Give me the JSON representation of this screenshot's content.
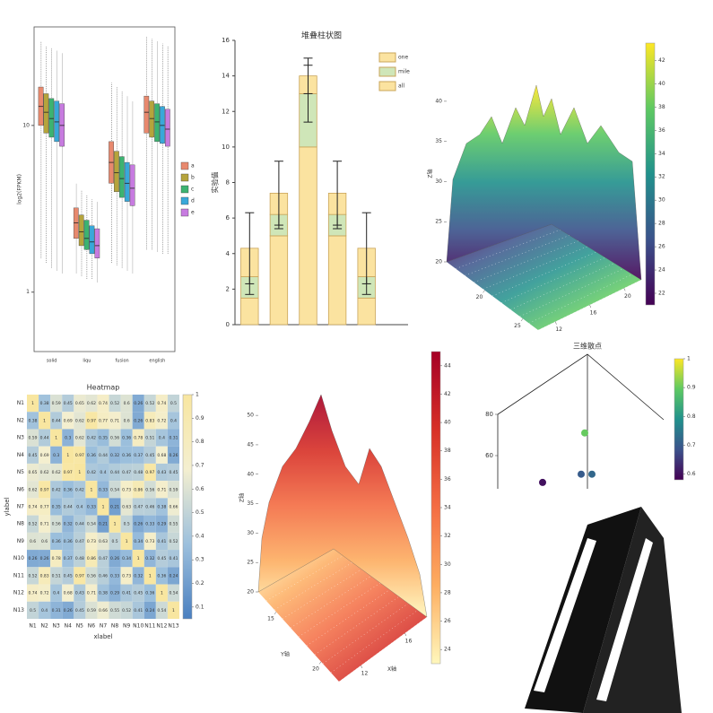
{
  "chart_data": [
    {
      "type": "box",
      "y_label": "log2(FPKM)",
      "categories": [
        "solid",
        "liqu",
        "fusion",
        "english"
      ],
      "log_y": true,
      "ylim": [
        0.44,
        39
      ],
      "yticks": [
        1,
        10
      ],
      "series": [
        {
          "name": "a",
          "color": "#e8896e",
          "values": [
            [
              1.6,
              10,
              13,
              17,
              32
            ],
            [
              1.3,
              2.1,
              2.6,
              3.2,
              4.5
            ],
            [
              1.5,
              4.5,
              6,
              8,
              18
            ],
            [
              1.8,
              9,
              12,
              15,
              34
            ]
          ]
        },
        {
          "name": "b",
          "color": "#b5a43c",
          "values": [
            [
              1.5,
              9,
              12,
              15.5,
              30
            ],
            [
              1.25,
              1.9,
              2.3,
              2.9,
              4.1
            ],
            [
              1.45,
              4,
              5.2,
              7,
              17
            ],
            [
              1.8,
              8.5,
              11,
              14,
              33
            ]
          ]
        },
        {
          "name": "c",
          "color": "#3cb371",
          "values": [
            [
              1.4,
              8.5,
              11,
              14.5,
              29
            ],
            [
              1.2,
              1.8,
              2.1,
              2.7,
              3.8
            ],
            [
              1.4,
              3.7,
              4.8,
              6.5,
              16
            ],
            [
              1.75,
              8,
              10.5,
              13.5,
              32
            ]
          ]
        },
        {
          "name": "d",
          "color": "#39a8d9",
          "values": [
            [
              1.35,
              8,
              10.5,
              14,
              28
            ],
            [
              1.2,
              1.7,
              2,
              2.5,
              3.6
            ],
            [
              1.35,
              3.5,
              4.5,
              6,
              15
            ],
            [
              1.7,
              7.8,
              10,
              13,
              31
            ]
          ]
        },
        {
          "name": "e",
          "color": "#c77be0",
          "values": [
            [
              1.3,
              7.5,
              10,
              13.5,
              27
            ],
            [
              1.15,
              1.6,
              1.9,
              2.4,
              3.5
            ],
            [
              1.3,
              3.3,
              4.2,
              5.8,
              14
            ],
            [
              1.7,
              7.5,
              9.5,
              12.5,
              30
            ]
          ]
        }
      ]
    },
    {
      "type": "stacked_bar",
      "title": "堆叠柱状图",
      "y_label": "实验值",
      "categories": [
        null,
        null,
        null,
        null,
        null
      ],
      "ylim": [
        0,
        16
      ],
      "yticks": [
        0,
        2,
        4,
        6,
        8,
        10,
        12,
        14,
        16
      ],
      "series": [
        {
          "name": "one",
          "color": "#fbe3a0",
          "values": [
            1.5,
            5,
            10,
            5,
            1.5
          ]
        },
        {
          "name": "mile",
          "color": "#cfe6b8",
          "values": [
            1.2,
            1.2,
            3,
            1.2,
            1.2
          ],
          "errors": [
            1,
            0.8,
            1.6,
            0.8,
            1
          ]
        },
        {
          "name": "all",
          "color": "#fbe3a0",
          "values": [
            1.6,
            1.2,
            1,
            1.2,
            1.6
          ],
          "errors": [
            2,
            1.8,
            1,
            1.8,
            2
          ]
        }
      ]
    },
    {
      "type": "surface3d",
      "z_label": "Z轴",
      "zlim": [
        20,
        42
      ],
      "zticks": [
        20,
        25,
        30,
        35,
        40
      ],
      "xlim": [
        10,
        22
      ],
      "xticks": [
        12,
        16,
        20
      ],
      "ylim": [
        15,
        27
      ],
      "yticks": [
        20,
        25
      ],
      "clim": [
        21,
        43.5
      ],
      "cticks": [
        22,
        24,
        26,
        28,
        30,
        32,
        34,
        36,
        38,
        40,
        42
      ],
      "colormap": [
        "#440154",
        "#3b528b",
        "#21918c",
        "#5ec962",
        "#fde725"
      ]
    },
    {
      "type": "heatmap",
      "title": "Heatmap",
      "x_label": "xlabel",
      "y_label": "ylabel",
      "labels": [
        "N1",
        "N2",
        "N3",
        "N4",
        "N5",
        "N6",
        "N7",
        "N8",
        "N9",
        "N10",
        "N11",
        "N12",
        "N13"
      ],
      "values": [
        [
          1,
          0.38,
          0.59,
          0.45,
          0.65,
          0.62,
          0.74,
          0.52,
          0.6,
          0.26,
          0.52,
          0.74,
          0.5
        ],
        [
          0.38,
          1,
          0.44,
          0.69,
          0.62,
          0.97,
          0.77,
          0.71,
          0.6,
          0.26,
          0.83,
          0.72,
          0.4
        ],
        [
          0.59,
          0.44,
          1,
          0.3,
          0.62,
          0.42,
          0.35,
          0.56,
          0.36,
          0.78,
          0.51,
          0.4,
          0.31
        ],
        [
          0.45,
          0.69,
          0.3,
          1,
          0.97,
          0.36,
          0.44,
          0.32,
          0.36,
          0.37,
          0.45,
          0.68,
          0.26
        ],
        [
          0.65,
          0.62,
          0.62,
          0.97,
          1,
          0.42,
          0.4,
          0.44,
          0.47,
          0.48,
          0.97,
          0.43,
          0.45
        ],
        [
          0.62,
          0.97,
          0.42,
          0.36,
          0.42,
          1,
          0.33,
          0.54,
          0.73,
          0.86,
          0.56,
          0.71,
          0.59
        ],
        [
          0.74,
          0.77,
          0.35,
          0.44,
          0.4,
          0.33,
          1,
          0.21,
          0.63,
          0.47,
          0.46,
          0.38,
          0.66
        ],
        [
          0.52,
          0.71,
          0.56,
          0.32,
          0.44,
          0.54,
          0.21,
          1,
          0.5,
          0.26,
          0.33,
          0.29,
          0.55
        ],
        [
          0.6,
          0.6,
          0.36,
          0.36,
          0.47,
          0.73,
          0.63,
          0.5,
          1,
          0.34,
          0.73,
          0.41,
          0.52
        ],
        [
          0.26,
          0.26,
          0.78,
          0.37,
          0.48,
          0.86,
          0.47,
          0.26,
          0.34,
          1,
          0.32,
          0.45,
          0.41
        ],
        [
          0.52,
          0.83,
          0.51,
          0.45,
          0.97,
          0.56,
          0.46,
          0.33,
          0.73,
          0.32,
          1,
          0.36,
          0.24
        ],
        [
          0.74,
          0.72,
          0.4,
          0.68,
          0.43,
          0.71,
          0.38,
          0.29,
          0.41,
          0.45,
          0.36,
          1,
          0.54
        ],
        [
          0.5,
          0.4,
          0.31,
          0.26,
          0.45,
          0.59,
          0.66,
          0.55,
          0.52,
          0.41,
          0.24,
          0.54,
          1
        ]
      ],
      "clim": [
        0.05,
        1
      ],
      "cticks": [
        0.1,
        0.2,
        0.3,
        0.4,
        0.5,
        0.6,
        0.7,
        0.8,
        0.9,
        1
      ],
      "colormap": [
        "#4a7fc0",
        "#9dc0dd",
        "#f4efd0",
        "#f8e6a0"
      ]
    },
    {
      "type": "surface3d",
      "z_label": "Z轴",
      "x_label": "X轴",
      "y_label": "Y轴",
      "zlim": [
        20,
        52
      ],
      "zticks": [
        20,
        25,
        30,
        35,
        40,
        45,
        50
      ],
      "xlim": [
        10,
        18
      ],
      "xticks": [
        12,
        16
      ],
      "ylim": [
        13,
        22
      ],
      "yticks": [
        15,
        20
      ],
      "clim": [
        23,
        45
      ],
      "cticks": [
        24,
        26,
        28,
        30,
        32,
        34,
        36,
        38,
        40,
        42,
        44
      ],
      "colormap": [
        "#fff7bc",
        "#fdae61",
        "#f46d43",
        "#d73027",
        "#a50026"
      ]
    },
    {
      "type": "scatter3d",
      "title": "三维散点",
      "zlim": [
        40,
        90
      ],
      "zticks": [
        60,
        80
      ],
      "xlim": [
        0,
        20
      ],
      "x": [
        10.2,
        9.8,
        11,
        5.5
      ],
      "z": [
        71,
        51,
        51,
        47
      ],
      "c": [
        0.9,
        0.7,
        0.72,
        0.6
      ],
      "clim": [
        0.58,
        1
      ],
      "cticks": [
        0.6,
        0.7,
        0.8,
        0.9,
        1
      ],
      "colormap": [
        "#440154",
        "#3b528b",
        "#21918c",
        "#5ec962",
        "#fde725"
      ]
    }
  ]
}
